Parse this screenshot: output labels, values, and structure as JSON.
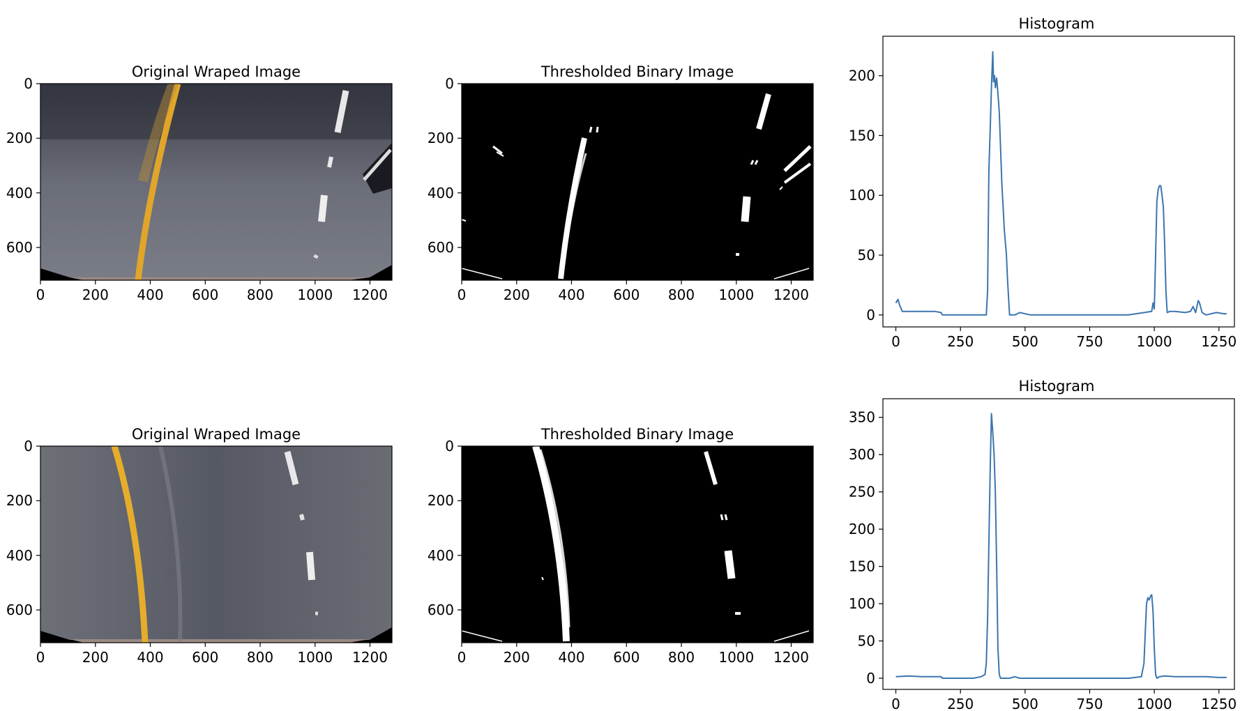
{
  "figure": {
    "rows": [
      {
        "original": {
          "title": "Original Wraped Image",
          "xticks": [
            "0",
            "200",
            "400",
            "600",
            "800",
            "1000",
            "1200"
          ],
          "yticks": [
            "0",
            "200",
            "400",
            "600"
          ]
        },
        "binary": {
          "title": "Thresholded Binary Image",
          "xticks": [
            "0",
            "200",
            "400",
            "600",
            "800",
            "1000",
            "1200"
          ],
          "yticks": [
            "0",
            "200",
            "400",
            "600"
          ]
        },
        "histogram": {
          "title": "Histogram",
          "xticks": [
            "0",
            "250",
            "500",
            "750",
            "1000",
            "1250"
          ],
          "yticks": [
            "0",
            "50",
            "100",
            "150",
            "200"
          ]
        }
      },
      {
        "original": {
          "title": "Original Wraped Image",
          "xticks": [
            "0",
            "200",
            "400",
            "600",
            "800",
            "1000",
            "1200"
          ],
          "yticks": [
            "0",
            "200",
            "400",
            "600"
          ]
        },
        "binary": {
          "title": "Thresholded Binary Image",
          "xticks": [
            "0",
            "200",
            "400",
            "600",
            "800",
            "1000",
            "1200"
          ],
          "yticks": [
            "0",
            "200",
            "400",
            "600"
          ]
        },
        "histogram": {
          "title": "Histogram",
          "xticks": [
            "0",
            "250",
            "500",
            "750",
            "1000",
            "1250"
          ],
          "yticks": [
            "0",
            "50",
            "100",
            "150",
            "200",
            "250",
            "300",
            "350"
          ]
        }
      }
    ]
  },
  "colors": {
    "line": "#3b75af",
    "road": "#5a5c66",
    "lane_yellow": "#e0a52a",
    "lane_white": "#f0f0f0",
    "binary_bg": "#000000"
  },
  "chart_data": [
    {
      "type": "line",
      "title": "Histogram",
      "xlim": [
        -50,
        1310
      ],
      "ylim": [
        -10,
        233
      ],
      "series": [
        {
          "x": [
            0,
            8,
            15,
            25,
            60,
            100,
            150,
            175,
            180,
            200,
            300,
            340,
            350,
            355,
            360,
            365,
            370,
            375,
            378,
            382,
            385,
            390,
            395,
            400,
            410,
            420,
            428,
            432,
            440,
            460,
            480,
            520,
            600,
            700,
            800,
            900,
            990,
            995,
            1000,
            1005,
            1010,
            1015,
            1020,
            1025,
            1030,
            1035,
            1040,
            1045,
            1050,
            1060,
            1080,
            1120,
            1140,
            1150,
            1160,
            1170,
            1175,
            1185,
            1200,
            1240,
            1270,
            1280
          ],
          "values": [
            10,
            13,
            8,
            3,
            3,
            3,
            3,
            2,
            0,
            0,
            0,
            0,
            0,
            20,
            120,
            155,
            190,
            220,
            195,
            200,
            190,
            198,
            185,
            170,
            110,
            70,
            50,
            30,
            0,
            0,
            2,
            0,
            0,
            0,
            0,
            0,
            3,
            10,
            5,
            50,
            95,
            105,
            108,
            108,
            100,
            90,
            60,
            20,
            2,
            3,
            3,
            2,
            3,
            7,
            2,
            12,
            10,
            2,
            0,
            2,
            1,
            1
          ]
        }
      ]
    },
    {
      "type": "line",
      "title": "Histogram",
      "xlim": [
        -50,
        1310
      ],
      "ylim": [
        -15,
        375
      ],
      "series": [
        {
          "x": [
            0,
            50,
            100,
            150,
            175,
            180,
            200,
            250,
            300,
            330,
            345,
            350,
            355,
            360,
            365,
            370,
            375,
            380,
            385,
            390,
            395,
            400,
            405,
            420,
            440,
            460,
            480,
            520,
            600,
            700,
            800,
            900,
            950,
            960,
            965,
            970,
            975,
            980,
            985,
            990,
            995,
            1000,
            1005,
            1010,
            1020,
            1040,
            1080,
            1150,
            1200,
            1250,
            1280
          ],
          "values": [
            2,
            3,
            2,
            2,
            2,
            0,
            0,
            0,
            0,
            2,
            5,
            20,
            80,
            180,
            280,
            355,
            330,
            300,
            250,
            150,
            40,
            5,
            0,
            0,
            0,
            2,
            0,
            0,
            0,
            0,
            0,
            0,
            2,
            20,
            60,
            100,
            108,
            105,
            110,
            112,
            90,
            40,
            5,
            0,
            2,
            3,
            2,
            2,
            2,
            1,
            1
          ]
        }
      ]
    }
  ]
}
